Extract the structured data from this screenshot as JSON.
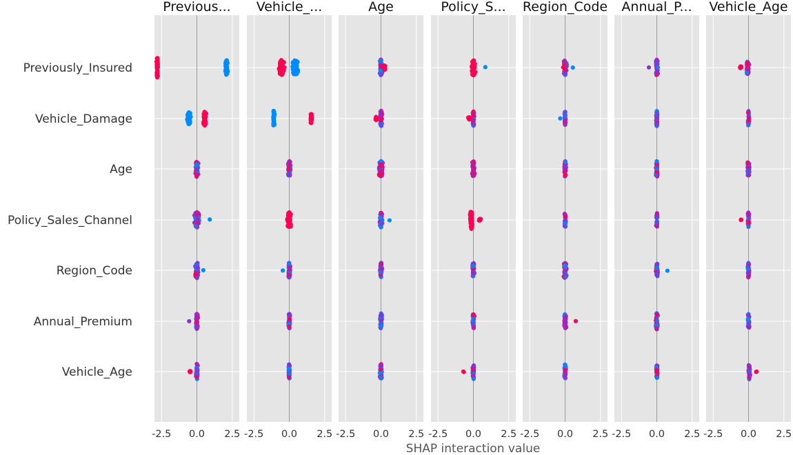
{
  "chart_data": {
    "type": "scatter",
    "xlabel": "SHAP interaction value",
    "xlim": [
      -3,
      3
    ],
    "x_ticks": [
      -2.5,
      0.0,
      2.5
    ],
    "x_tick_labels": [
      "-2.5",
      "0.0",
      "2.5"
    ],
    "features": [
      "Previously_Insured",
      "Vehicle_Damage",
      "Age",
      "Policy_Sales_Channel",
      "Region_Code",
      "Annual_Premium",
      "Vehicle_Age"
    ],
    "panel_titles": [
      "Previous...",
      "Vehicle_...",
      "Age",
      "Policy_S...",
      "Region_Code",
      "Annual_P...",
      "Vehicle_Age"
    ],
    "color_scale": {
      "low": "#008bfb",
      "mid": "#8b2fd6",
      "high": "#ff0052"
    },
    "panel_background": "#e5e5e5",
    "grid": true,
    "cells": [
      [
        {
          "clusters": [
            {
              "center": -2.8,
              "spread": 0.07,
              "height": 0.4,
              "n": 60,
              "color": "#ff0052"
            },
            {
              "center": 2.1,
              "spread": 0.12,
              "height": 0.3,
              "n": 45,
              "color": "#008bfb"
            }
          ]
        },
        {
          "clusters": [
            {
              "center": -0.55,
              "spread": 0.25,
              "height": 0.3,
              "n": 70,
              "color": "#ff0052"
            },
            {
              "center": 0.4,
              "spread": 0.28,
              "height": 0.3,
              "n": 70,
              "color": "#008bfb"
            }
          ]
        },
        {
          "clusters": [
            {
              "center": 0.0,
              "spread": 0.12,
              "height": 0.32,
              "n": 50,
              "color": "mix"
            },
            {
              "center": 0.25,
              "spread": 0.08,
              "height": 0.1,
              "n": 12,
              "color": "#ff0052"
            }
          ]
        },
        {
          "clusters": [
            {
              "center": 0.0,
              "spread": 0.18,
              "height": 0.32,
              "n": 50,
              "color": "#ff0052"
            },
            {
              "center": 0.85,
              "spread": 0.02,
              "height": 0.02,
              "n": 1,
              "color": "#008bfb"
            }
          ]
        },
        {
          "clusters": [
            {
              "center": 0.0,
              "spread": 0.15,
              "height": 0.3,
              "n": 40,
              "color": "mix"
            },
            {
              "center": 0.55,
              "spread": 0.02,
              "height": 0.02,
              "n": 1,
              "color": "#008bfb"
            }
          ]
        },
        {
          "clusters": [
            {
              "center": 0.0,
              "spread": 0.09,
              "height": 0.32,
              "n": 40,
              "color": "mix"
            },
            {
              "center": -0.55,
              "spread": 0.02,
              "height": 0.02,
              "n": 1,
              "color": "#8b2fd6"
            }
          ]
        },
        {
          "clusters": [
            {
              "center": -0.05,
              "spread": 0.12,
              "height": 0.28,
              "n": 35,
              "color": "mix"
            },
            {
              "center": -0.55,
              "spread": 0.1,
              "height": 0.05,
              "n": 10,
              "color": "#ff0052"
            }
          ]
        }
      ],
      [
        {
          "clusters": [
            {
              "center": 0.55,
              "spread": 0.12,
              "height": 0.28,
              "n": 55,
              "color": "#ff0052"
            },
            {
              "center": -0.55,
              "spread": 0.15,
              "height": 0.25,
              "n": 55,
              "color": "#008bfb"
            }
          ]
        },
        {
          "clusters": [
            {
              "center": -1.1,
              "spread": 0.07,
              "height": 0.32,
              "n": 50,
              "color": "#008bfb"
            },
            {
              "center": 1.55,
              "spread": 0.07,
              "height": 0.2,
              "n": 40,
              "color": "#ff0052"
            }
          ]
        },
        {
          "clusters": [
            {
              "center": 0.0,
              "spread": 0.1,
              "height": 0.32,
              "n": 45,
              "color": "mix"
            },
            {
              "center": -0.35,
              "spread": 0.08,
              "height": 0.07,
              "n": 10,
              "color": "#ff0052"
            }
          ]
        },
        {
          "clusters": [
            {
              "center": 0.0,
              "spread": 0.08,
              "height": 0.3,
              "n": 35,
              "color": "mix"
            },
            {
              "center": -0.3,
              "spread": 0.08,
              "height": 0.06,
              "n": 10,
              "color": "#ff0052"
            }
          ]
        },
        {
          "clusters": [
            {
              "center": 0.0,
              "spread": 0.06,
              "height": 0.28,
              "n": 30,
              "color": "mix"
            },
            {
              "center": -0.35,
              "spread": 0.02,
              "height": 0.02,
              "n": 1,
              "color": "#008bfb"
            }
          ]
        },
        {
          "clusters": [
            {
              "center": 0.0,
              "spread": 0.06,
              "height": 0.3,
              "n": 35,
              "color": "mix"
            }
          ]
        },
        {
          "clusters": [
            {
              "center": 0.0,
              "spread": 0.05,
              "height": 0.3,
              "n": 30,
              "color": "mix"
            }
          ]
        }
      ],
      [
        {
          "clusters": [
            {
              "center": 0.0,
              "spread": 0.14,
              "height": 0.32,
              "n": 55,
              "color": "mix"
            }
          ]
        },
        {
          "clusters": [
            {
              "center": 0.0,
              "spread": 0.12,
              "height": 0.32,
              "n": 45,
              "color": "mix"
            }
          ]
        },
        {
          "clusters": [
            {
              "center": 0.0,
              "spread": 0.2,
              "height": 0.32,
              "n": 80,
              "color": "mix"
            }
          ]
        },
        {
          "clusters": [
            {
              "center": 0.0,
              "spread": 0.12,
              "height": 0.32,
              "n": 40,
              "color": "mix"
            }
          ]
        },
        {
          "clusters": [
            {
              "center": 0.0,
              "spread": 0.09,
              "height": 0.32,
              "n": 35,
              "color": "mix"
            }
          ]
        },
        {
          "clusters": [
            {
              "center": 0.0,
              "spread": 0.1,
              "height": 0.32,
              "n": 35,
              "color": "mix"
            }
          ]
        },
        {
          "clusters": [
            {
              "center": 0.0,
              "spread": 0.13,
              "height": 0.3,
              "n": 35,
              "color": "mix"
            }
          ]
        }
      ],
      [
        {
          "clusters": [
            {
              "center": 0.0,
              "spread": 0.2,
              "height": 0.32,
              "n": 55,
              "color": "mix"
            },
            {
              "center": 0.9,
              "spread": 0.02,
              "height": 0.02,
              "n": 1,
              "color": "#008bfb"
            }
          ]
        },
        {
          "clusters": [
            {
              "center": 0.0,
              "spread": 0.18,
              "height": 0.32,
              "n": 50,
              "color": "#ff0052"
            }
          ]
        },
        {
          "clusters": [
            {
              "center": 0.0,
              "spread": 0.15,
              "height": 0.3,
              "n": 40,
              "color": "mix"
            },
            {
              "center": 0.6,
              "spread": 0.02,
              "height": 0.02,
              "n": 1,
              "color": "#008bfb"
            }
          ]
        },
        {
          "clusters": [
            {
              "center": -0.15,
              "spread": 0.12,
              "height": 0.36,
              "n": 70,
              "color": "#ff0052"
            },
            {
              "center": 0.45,
              "spread": 0.1,
              "height": 0.05,
              "n": 8,
              "color": "#ff0052"
            }
          ]
        },
        {
          "clusters": [
            {
              "center": 0.0,
              "spread": 0.08,
              "height": 0.3,
              "n": 30,
              "color": "mix"
            }
          ]
        },
        {
          "clusters": [
            {
              "center": 0.0,
              "spread": 0.06,
              "height": 0.3,
              "n": 30,
              "color": "mix"
            }
          ]
        },
        {
          "clusters": [
            {
              "center": 0.0,
              "spread": 0.08,
              "height": 0.3,
              "n": 30,
              "color": "mix"
            },
            {
              "center": -0.5,
              "spread": 0.08,
              "height": 0.02,
              "n": 3,
              "color": "#ff0052"
            }
          ]
        }
      ],
      [
        {
          "clusters": [
            {
              "center": 0.0,
              "spread": 0.15,
              "height": 0.32,
              "n": 40,
              "color": "mix"
            },
            {
              "center": 0.45,
              "spread": 0.02,
              "height": 0.02,
              "n": 1,
              "color": "#008bfb"
            }
          ]
        },
        {
          "clusters": [
            {
              "center": 0.0,
              "spread": 0.09,
              "height": 0.3,
              "n": 35,
              "color": "mix"
            },
            {
              "center": -0.45,
              "spread": 0.02,
              "height": 0.02,
              "n": 1,
              "color": "#008bfb"
            }
          ]
        },
        {
          "clusters": [
            {
              "center": 0.0,
              "spread": 0.09,
              "height": 0.32,
              "n": 35,
              "color": "mix"
            }
          ]
        },
        {
          "clusters": [
            {
              "center": 0.0,
              "spread": 0.09,
              "height": 0.3,
              "n": 30,
              "color": "mix"
            }
          ]
        },
        {
          "clusters": [
            {
              "center": 0.0,
              "spread": 0.13,
              "height": 0.32,
              "n": 45,
              "color": "mix"
            }
          ]
        },
        {
          "clusters": [
            {
              "center": 0.0,
              "spread": 0.1,
              "height": 0.3,
              "n": 30,
              "color": "mix"
            },
            {
              "center": 0.75,
              "spread": 0.02,
              "height": 0.02,
              "n": 1,
              "color": "#008bfb"
            }
          ]
        },
        {
          "clusters": [
            {
              "center": 0.0,
              "spread": 0.06,
              "height": 0.3,
              "n": 30,
              "color": "mix"
            }
          ]
        }
      ],
      [
        {
          "clusters": [
            {
              "center": 0.0,
              "spread": 0.1,
              "height": 0.32,
              "n": 40,
              "color": "mix"
            },
            {
              "center": -0.55,
              "spread": 0.02,
              "height": 0.02,
              "n": 1,
              "color": "#8b2fd6"
            }
          ]
        },
        {
          "clusters": [
            {
              "center": 0.0,
              "spread": 0.09,
              "height": 0.32,
              "n": 35,
              "color": "mix"
            }
          ]
        },
        {
          "clusters": [
            {
              "center": 0.0,
              "spread": 0.1,
              "height": 0.32,
              "n": 35,
              "color": "mix"
            }
          ]
        },
        {
          "clusters": [
            {
              "center": 0.0,
              "spread": 0.08,
              "height": 0.3,
              "n": 30,
              "color": "mix"
            }
          ]
        },
        {
          "clusters": [
            {
              "center": 0.0,
              "spread": 0.1,
              "height": 0.32,
              "n": 40,
              "color": "mix"
            },
            {
              "center": 0.75,
              "spread": 0.02,
              "height": 0.02,
              "n": 1,
              "color": "#ff0052"
            }
          ]
        },
        {
          "clusters": [
            {
              "center": 0.0,
              "spread": 0.09,
              "height": 0.32,
              "n": 35,
              "color": "mix"
            }
          ]
        },
        {
          "clusters": [
            {
              "center": 0.0,
              "spread": 0.07,
              "height": 0.3,
              "n": 30,
              "color": "mix"
            }
          ]
        }
      ],
      [
        {
          "clusters": [
            {
              "center": 0.0,
              "spread": 0.08,
              "height": 0.32,
              "n": 35,
              "color": "mix"
            },
            {
              "center": -0.45,
              "spread": 0.08,
              "height": 0.03,
              "n": 8,
              "color": "#ff0052"
            }
          ]
        },
        {
          "clusters": [
            {
              "center": 0.0,
              "spread": 0.06,
              "height": 0.32,
              "n": 30,
              "color": "mix"
            }
          ]
        },
        {
          "clusters": [
            {
              "center": 0.0,
              "spread": 0.1,
              "height": 0.3,
              "n": 35,
              "color": "mix"
            }
          ]
        },
        {
          "clusters": [
            {
              "center": 0.0,
              "spread": 0.07,
              "height": 0.32,
              "n": 30,
              "color": "mix"
            },
            {
              "center": -0.7,
              "spread": 0.08,
              "height": 0.02,
              "n": 2,
              "color": "#ff0052"
            }
          ]
        },
        {
          "clusters": [
            {
              "center": 0.0,
              "spread": 0.07,
              "height": 0.3,
              "n": 30,
              "color": "mix"
            }
          ]
        },
        {
          "clusters": [
            {
              "center": 0.0,
              "spread": 0.07,
              "height": 0.3,
              "n": 30,
              "color": "mix"
            }
          ]
        },
        {
          "clusters": [
            {
              "center": 0.05,
              "spread": 0.08,
              "height": 0.3,
              "n": 30,
              "color": "mix"
            },
            {
              "center": 0.55,
              "spread": 0.04,
              "height": 0.02,
              "n": 3,
              "color": "#ff0052"
            }
          ]
        }
      ]
    ]
  }
}
